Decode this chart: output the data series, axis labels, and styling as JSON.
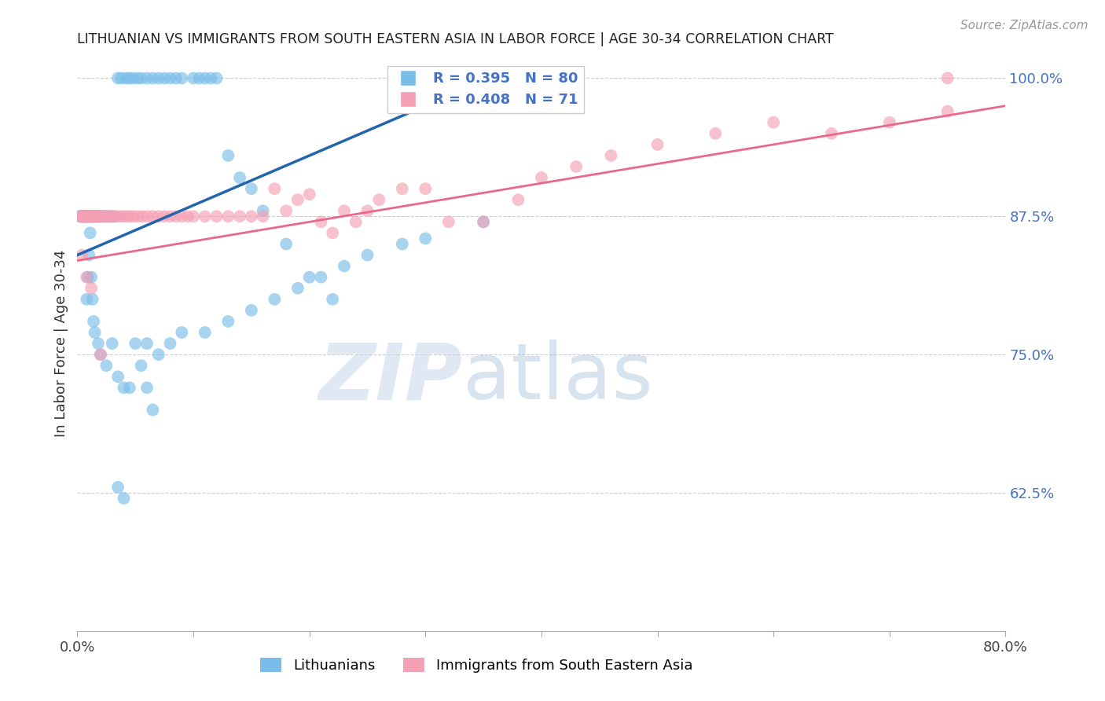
{
  "title": "LITHUANIAN VS IMMIGRANTS FROM SOUTH EASTERN ASIA IN LABOR FORCE | AGE 30-34 CORRELATION CHART",
  "source": "Source: ZipAtlas.com",
  "ylabel": "In Labor Force | Age 30-34",
  "x_min": 0.0,
  "x_max": 0.8,
  "y_min": 0.5,
  "y_max": 1.02,
  "y_ticks_right": [
    0.625,
    0.75,
    0.875,
    1.0
  ],
  "y_tick_labels_right": [
    "62.5%",
    "75.0%",
    "87.5%",
    "100.0%"
  ],
  "color_blue": "#7abde8",
  "color_pink": "#f4a0b5",
  "color_blue_line": "#2166ac",
  "color_pink_line": "#e8698a",
  "color_text_right": "#4472c4",
  "watermark_zip": "ZIP",
  "watermark_atlas": "atlas",
  "blue_scatter_x": [
    0.002,
    0.003,
    0.003,
    0.004,
    0.004,
    0.005,
    0.005,
    0.005,
    0.006,
    0.006,
    0.007,
    0.007,
    0.007,
    0.008,
    0.008,
    0.009,
    0.009,
    0.01,
    0.01,
    0.01,
    0.01,
    0.011,
    0.011,
    0.012,
    0.012,
    0.013,
    0.013,
    0.014,
    0.014,
    0.015,
    0.015,
    0.016,
    0.016,
    0.017,
    0.018,
    0.018,
    0.019,
    0.02,
    0.02,
    0.021,
    0.022,
    0.023,
    0.024,
    0.025,
    0.026,
    0.028,
    0.03,
    0.032,
    0.035,
    0.038,
    0.042,
    0.045,
    0.048,
    0.052,
    0.055,
    0.06,
    0.065,
    0.07,
    0.075,
    0.08,
    0.085,
    0.09,
    0.1,
    0.105,
    0.11,
    0.115,
    0.12,
    0.13,
    0.14,
    0.15,
    0.16,
    0.18,
    0.2,
    0.22,
    0.05,
    0.055,
    0.06,
    0.065,
    0.035,
    0.04
  ],
  "blue_scatter_y": [
    0.875,
    0.875,
    0.875,
    0.875,
    0.875,
    0.875,
    0.875,
    0.875,
    0.875,
    0.875,
    0.875,
    0.875,
    0.875,
    0.875,
    0.875,
    0.875,
    0.875,
    0.875,
    0.875,
    0.875,
    0.875,
    0.875,
    0.875,
    0.875,
    0.875,
    0.875,
    0.875,
    0.875,
    0.875,
    0.875,
    0.875,
    0.875,
    0.875,
    0.875,
    0.875,
    0.875,
    0.875,
    0.875,
    0.875,
    0.875,
    0.875,
    0.875,
    0.875,
    0.875,
    0.875,
    0.875,
    0.875,
    0.875,
    1.0,
    1.0,
    1.0,
    1.0,
    1.0,
    1.0,
    1.0,
    1.0,
    1.0,
    1.0,
    1.0,
    1.0,
    1.0,
    1.0,
    1.0,
    1.0,
    1.0,
    1.0,
    1.0,
    0.93,
    0.91,
    0.9,
    0.88,
    0.85,
    0.82,
    0.8,
    0.76,
    0.74,
    0.72,
    0.7,
    0.63,
    0.62
  ],
  "blue_scatter_x2": [
    0.008,
    0.009,
    0.01,
    0.011,
    0.012,
    0.013,
    0.014,
    0.015,
    0.018,
    0.02,
    0.025,
    0.03,
    0.035,
    0.04,
    0.045,
    0.06,
    0.07,
    0.08,
    0.09,
    0.11,
    0.13,
    0.15,
    0.17,
    0.19,
    0.21,
    0.23,
    0.25,
    0.28,
    0.3,
    0.35
  ],
  "blue_scatter_y2": [
    0.8,
    0.82,
    0.84,
    0.86,
    0.82,
    0.8,
    0.78,
    0.77,
    0.76,
    0.75,
    0.74,
    0.76,
    0.73,
    0.72,
    0.72,
    0.76,
    0.75,
    0.76,
    0.77,
    0.77,
    0.78,
    0.79,
    0.8,
    0.81,
    0.82,
    0.83,
    0.84,
    0.85,
    0.855,
    0.87
  ],
  "pink_scatter_x": [
    0.003,
    0.004,
    0.005,
    0.006,
    0.007,
    0.008,
    0.009,
    0.01,
    0.011,
    0.012,
    0.013,
    0.015,
    0.017,
    0.019,
    0.021,
    0.023,
    0.025,
    0.028,
    0.03,
    0.033,
    0.036,
    0.039,
    0.042,
    0.045,
    0.048,
    0.052,
    0.056,
    0.06,
    0.065,
    0.07,
    0.075,
    0.08,
    0.085,
    0.09,
    0.095,
    0.1,
    0.11,
    0.12,
    0.13,
    0.14,
    0.15,
    0.16,
    0.17,
    0.18,
    0.19,
    0.2,
    0.21,
    0.22,
    0.23,
    0.24,
    0.25,
    0.26,
    0.28,
    0.3,
    0.32,
    0.35,
    0.38,
    0.4,
    0.43,
    0.46,
    0.5,
    0.55,
    0.6,
    0.65,
    0.7,
    0.75,
    0.004,
    0.008,
    0.012,
    0.02,
    0.75
  ],
  "pink_scatter_y": [
    0.875,
    0.875,
    0.875,
    0.875,
    0.875,
    0.875,
    0.875,
    0.875,
    0.875,
    0.875,
    0.875,
    0.875,
    0.875,
    0.875,
    0.875,
    0.875,
    0.875,
    0.875,
    0.875,
    0.875,
    0.875,
    0.875,
    0.875,
    0.875,
    0.875,
    0.875,
    0.875,
    0.875,
    0.875,
    0.875,
    0.875,
    0.875,
    0.875,
    0.875,
    0.875,
    0.875,
    0.875,
    0.875,
    0.875,
    0.875,
    0.875,
    0.875,
    0.9,
    0.88,
    0.89,
    0.895,
    0.87,
    0.86,
    0.88,
    0.87,
    0.88,
    0.89,
    0.9,
    0.9,
    0.87,
    0.87,
    0.89,
    0.91,
    0.92,
    0.93,
    0.94,
    0.95,
    0.96,
    0.95,
    0.96,
    0.97,
    0.84,
    0.82,
    0.81,
    0.75,
    1.0
  ],
  "blue_trend_x0": 0.0,
  "blue_trend_y0": 0.84,
  "blue_trend_x1": 0.36,
  "blue_trend_y1": 1.002,
  "pink_trend_x0": 0.0,
  "pink_trend_y0": 0.835,
  "pink_trend_x1": 0.8,
  "pink_trend_y1": 0.975
}
